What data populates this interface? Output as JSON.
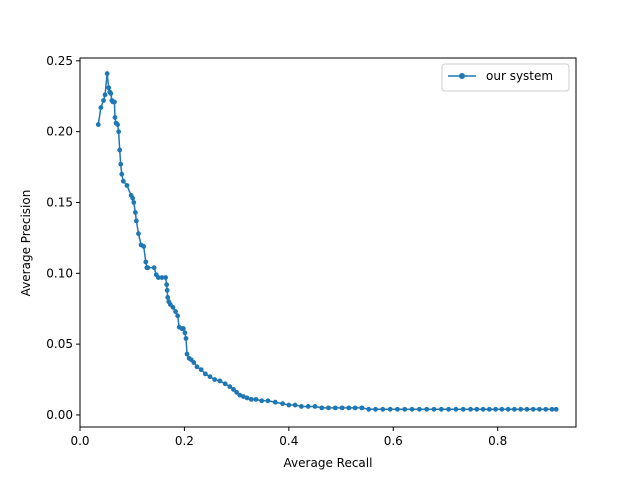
{
  "chart_data": {
    "type": "line",
    "title": "",
    "xlabel": "Average Recall",
    "ylabel": "Average Precision",
    "xlim": [
      0.0,
      0.95
    ],
    "ylim": [
      -0.0085,
      0.252
    ],
    "xticks": [
      0.0,
      0.2,
      0.4,
      0.6,
      0.8
    ],
    "xtick_labels": [
      "0.0",
      "0.2",
      "0.4",
      "0.6",
      "0.8"
    ],
    "yticks": [
      0.0,
      0.05,
      0.1,
      0.15,
      0.2,
      0.25
    ],
    "ytick_labels": [
      "0.00",
      "0.05",
      "0.10",
      "0.15",
      "0.20",
      "0.25"
    ],
    "grid": false,
    "legend_position": "top-right",
    "color": "#1f77b4",
    "series": [
      {
        "name": "our system",
        "marker": "dot",
        "x": [
          0.035,
          0.04,
          0.045,
          0.048,
          0.052,
          0.055,
          0.057,
          0.059,
          0.061,
          0.063,
          0.066,
          0.067,
          0.069,
          0.072,
          0.074,
          0.076,
          0.078,
          0.08,
          0.083,
          0.09,
          0.098,
          0.101,
          0.103,
          0.106,
          0.108,
          0.112,
          0.117,
          0.122,
          0.126,
          0.128,
          0.13,
          0.142,
          0.146,
          0.15,
          0.157,
          0.164,
          0.166,
          0.167,
          0.168,
          0.17,
          0.173,
          0.178,
          0.183,
          0.187,
          0.19,
          0.195,
          0.198,
          0.201,
          0.203,
          0.205,
          0.209,
          0.213,
          0.218,
          0.224,
          0.232,
          0.24,
          0.249,
          0.258,
          0.268,
          0.278,
          0.287,
          0.294,
          0.3,
          0.306,
          0.313,
          0.32,
          0.328,
          0.337,
          0.348,
          0.36,
          0.374,
          0.388,
          0.4,
          0.412,
          0.424,
          0.437,
          0.45,
          0.463,
          0.476,
          0.489,
          0.502,
          0.515,
          0.527,
          0.54,
          0.553,
          0.566,
          0.58,
          0.594,
          0.608,
          0.622,
          0.636,
          0.65,
          0.664,
          0.678,
          0.692,
          0.706,
          0.72,
          0.734,
          0.748,
          0.76,
          0.772,
          0.784,
          0.796,
          0.808,
          0.82,
          0.832,
          0.844,
          0.856,
          0.868,
          0.88,
          0.892,
          0.904,
          0.912
        ],
        "y": [
          0.205,
          0.217,
          0.222,
          0.226,
          0.241,
          0.231,
          0.228,
          0.227,
          0.222,
          0.221,
          0.221,
          0.21,
          0.206,
          0.205,
          0.2,
          0.187,
          0.177,
          0.17,
          0.165,
          0.162,
          0.155,
          0.153,
          0.15,
          0.143,
          0.137,
          0.128,
          0.12,
          0.119,
          0.108,
          0.104,
          0.104,
          0.104,
          0.099,
          0.097,
          0.097,
          0.097,
          0.092,
          0.088,
          0.083,
          0.08,
          0.078,
          0.076,
          0.073,
          0.07,
          0.062,
          0.061,
          0.061,
          0.058,
          0.054,
          0.043,
          0.04,
          0.039,
          0.037,
          0.034,
          0.032,
          0.029,
          0.027,
          0.025,
          0.024,
          0.022,
          0.02,
          0.018,
          0.016,
          0.014,
          0.013,
          0.012,
          0.011,
          0.011,
          0.01,
          0.01,
          0.009,
          0.008,
          0.007,
          0.007,
          0.006,
          0.006,
          0.006,
          0.005,
          0.005,
          0.005,
          0.005,
          0.005,
          0.005,
          0.005,
          0.004,
          0.004,
          0.004,
          0.004,
          0.004,
          0.004,
          0.004,
          0.004,
          0.004,
          0.004,
          0.004,
          0.004,
          0.004,
          0.004,
          0.004,
          0.004,
          0.004,
          0.004,
          0.004,
          0.004,
          0.004,
          0.004,
          0.004,
          0.004,
          0.004,
          0.004,
          0.004,
          0.004,
          0.004
        ]
      }
    ]
  }
}
